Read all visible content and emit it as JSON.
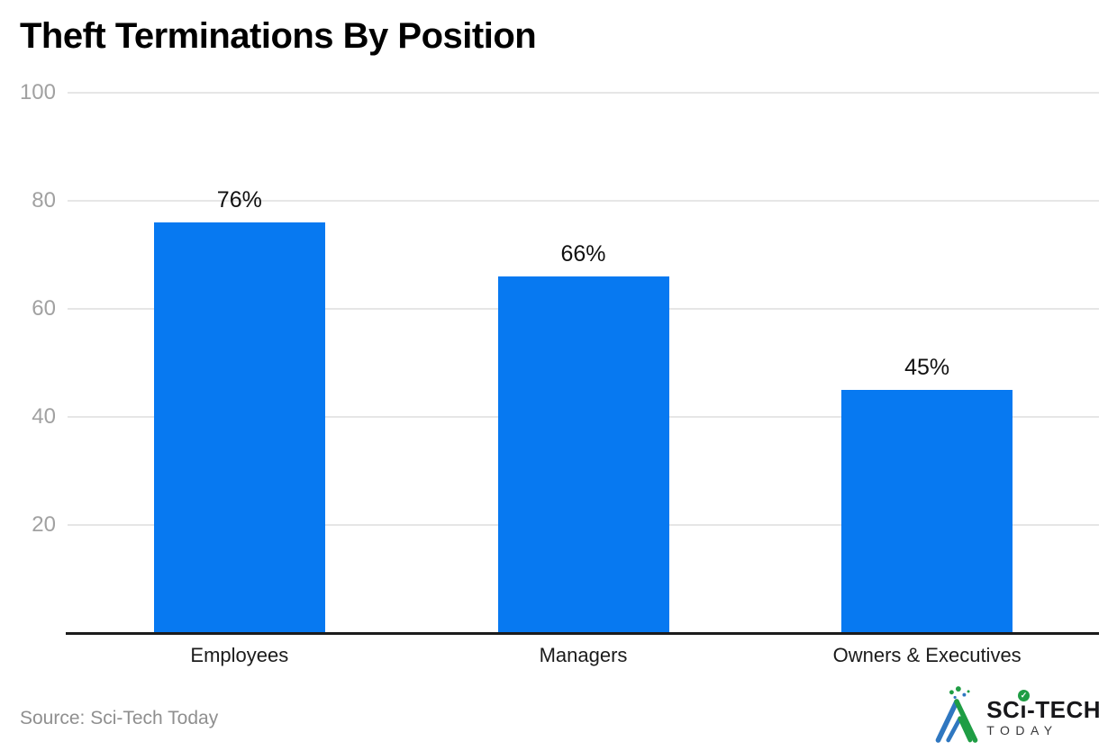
{
  "chart_data": {
    "type": "bar",
    "title": "Theft Terminations By Position",
    "categories": [
      "Employees",
      "Managers",
      "Owners & Executives"
    ],
    "values": [
      76,
      66,
      45
    ],
    "value_labels": [
      "76%",
      "66%",
      "45%"
    ],
    "xlabel": "",
    "ylabel": "",
    "ylim": [
      0,
      100
    ],
    "yticks": [
      20,
      40,
      60,
      80,
      100
    ],
    "grid": true,
    "legend_position": "none",
    "bar_color": "#0779f1",
    "grid_color": "#e6e6e6",
    "axis_line_color": "#1c1c1c",
    "tick_label_color": "#a1a1a1",
    "label_color": "#111111"
  },
  "footer": {
    "source": "Source: Sci-Tech Today",
    "logo": {
      "brand_prefix": "SC",
      "brand_i": "ı",
      "brand_suffix": "-TECH",
      "brand_full": "SCi-TECH",
      "brand_sub": "TODAY",
      "check_icon": "✓",
      "green": "#1f9d44",
      "blue": "#2f77c0",
      "text_color": "#17171a"
    }
  }
}
